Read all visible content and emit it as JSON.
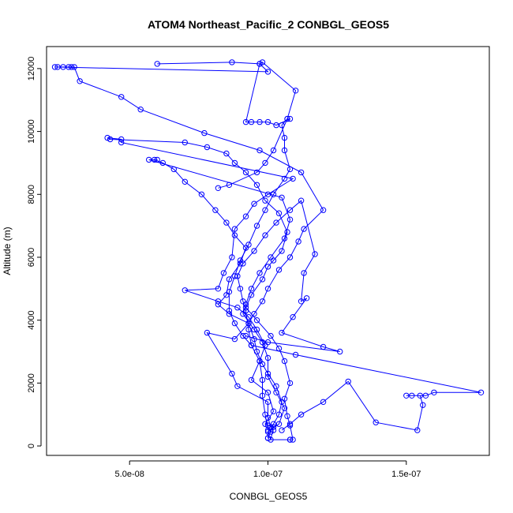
{
  "chart_data": {
    "type": "line",
    "title": "ATOM4 Northeast_Pacific_2 CONBGL_GEOS5",
    "xlabel": "CONBGL_GEOS5",
    "ylabel": "Altitude (m)",
    "xlim": [
      2e-08,
      1.8e-07
    ],
    "ylim": [
      -300,
      12700
    ],
    "x_ticks": [
      {
        "value": 5e-08,
        "label": "5.0e-08"
      },
      {
        "value": 1e-07,
        "label": "1.0e-07"
      },
      {
        "value": 1.5e-07,
        "label": "1.5e-07"
      }
    ],
    "y_ticks": [
      {
        "value": 0,
        "label": "0"
      },
      {
        "value": 2000,
        "label": "2000"
      },
      {
        "value": 4000,
        "label": "4000"
      },
      {
        "value": 6000,
        "label": "6000"
      },
      {
        "value": 8000,
        "label": "8000"
      },
      {
        "value": 10000,
        "label": "10000"
      },
      {
        "value": 12000,
        "label": "12000"
      }
    ],
    "grid": false,
    "colors": {
      "series": "#0000ff"
    },
    "series": [
      {
        "points": [
          [
            1.08e-07,
            200
          ],
          [
            1.09e-07,
            200
          ],
          [
            1.08e-07,
            650
          ],
          [
            1.07e-07,
            950
          ],
          [
            1.06e-07,
            1500
          ],
          [
            1.08e-07,
            2000
          ],
          [
            1.06e-07,
            2700
          ],
          [
            1.04e-07,
            3100
          ],
          [
            1.01e-07,
            3500
          ],
          [
            9.6e-08,
            4000
          ],
          [
            9.2e-08,
            4400
          ],
          [
            9.4e-08,
            4800
          ],
          [
            9.8e-08,
            5300
          ],
          [
            1e-07,
            5700
          ],
          [
            1.02e-07,
            5900
          ],
          [
            1.05e-07,
            6200
          ],
          [
            1.07e-07,
            6800
          ],
          [
            1.04e-07,
            7400
          ],
          [
            9.9e-08,
            7800
          ],
          [
            9.6e-08,
            8300
          ],
          [
            9.2e-08,
            8700
          ],
          [
            8.8e-08,
            9000
          ],
          [
            8.5e-08,
            9300
          ],
          [
            7.8e-08,
            9500
          ],
          [
            7e-08,
            9650
          ],
          [
            4.3e-08,
            9750
          ],
          [
            4.2e-08,
            9800
          ],
          [
            4.7e-08,
            9750
          ],
          [
            4.7e-08,
            9650
          ],
          [
            1.09e-07,
            8500
          ],
          [
            1e-07,
            8000
          ],
          [
            9.5e-08,
            7700
          ],
          [
            9.2e-08,
            7300
          ],
          [
            8.8e-08,
            6900
          ],
          [
            8.7e-08,
            6000
          ],
          [
            8.4e-08,
            5500
          ],
          [
            8.2e-08,
            5000
          ],
          [
            7e-08,
            4950
          ],
          [
            8.2e-08,
            4600
          ],
          [
            8.9e-08,
            4400
          ],
          [
            9.3e-08,
            4100
          ],
          [
            9.6e-08,
            3700
          ],
          [
            9.9e-08,
            3200
          ],
          [
            9.7e-08,
            2700
          ],
          [
            9.4e-08,
            2100
          ],
          [
            1e-07,
            1700
          ],
          [
            1.02e-07,
            1100
          ],
          [
            9.9e-08,
            700
          ],
          [
            1e-07,
            650
          ],
          [
            1.02e-07,
            600
          ],
          [
            1.01e-07,
            200
          ],
          [
            1.08e-07,
            200
          ]
        ]
      },
      {
        "points": [
          [
            1e-07,
            250
          ],
          [
            1.01e-07,
            450
          ],
          [
            1.02e-07,
            700
          ],
          [
            1.04e-07,
            1000
          ],
          [
            1.05e-07,
            1400
          ],
          [
            1.03e-07,
            1900
          ],
          [
            1e-07,
            2300
          ],
          [
            9.8e-08,
            2600
          ],
          [
            9.6e-08,
            3000
          ],
          [
            9.5e-08,
            3400
          ],
          [
            9.3e-08,
            3900
          ],
          [
            8.6e-08,
            4200
          ],
          [
            8.2e-08,
            4500
          ],
          [
            8.5e-08,
            4800
          ],
          [
            8.6e-08,
            5300
          ],
          [
            9e-08,
            5800
          ],
          [
            9.2e-08,
            6300
          ],
          [
            8.8e-08,
            6700
          ],
          [
            8.5e-08,
            7100
          ],
          [
            8.1e-08,
            7500
          ],
          [
            7.6e-08,
            8000
          ],
          [
            7e-08,
            8400
          ],
          [
            6.6e-08,
            8800
          ],
          [
            6.2e-08,
            9000
          ],
          [
            5.9e-08,
            9100
          ],
          [
            6e-08,
            9100
          ],
          [
            5.7e-08,
            9100
          ],
          [
            1.05e-07,
            7900
          ],
          [
            1.08e-07,
            7200
          ],
          [
            1.06e-07,
            6600
          ],
          [
            1.01e-07,
            6000
          ],
          [
            9.7e-08,
            5500
          ],
          [
            9.4e-08,
            5000
          ],
          [
            9.2e-08,
            4500
          ],
          [
            9.1e-08,
            4200
          ],
          [
            9.5e-08,
            3700
          ],
          [
            9.8e-08,
            3300
          ],
          [
            1e-07,
            2800
          ],
          [
            1e-07,
            2200
          ],
          [
            1.03e-07,
            1700
          ],
          [
            1.06e-07,
            1200
          ],
          [
            1.04e-07,
            700
          ],
          [
            1e-07,
            450
          ],
          [
            1e-07,
            250
          ]
        ]
      },
      {
        "points": [
          [
            1.05e-07,
            500
          ],
          [
            1.08e-07,
            700
          ],
          [
            1.12e-07,
            1000
          ],
          [
            1.2e-07,
            1400
          ],
          [
            1.29e-07,
            2050
          ],
          [
            1.39e-07,
            750
          ],
          [
            1.54e-07,
            500
          ],
          [
            1.56e-07,
            1300
          ],
          [
            1.55e-07,
            1600
          ],
          [
            1.52e-07,
            1600
          ],
          [
            1.5e-07,
            1600
          ],
          [
            1.57e-07,
            1600
          ],
          [
            1.6e-07,
            1700
          ],
          [
            1.77e-07,
            1700
          ],
          [
            1.1e-07,
            2900
          ],
          [
            9.4e-08,
            3200
          ],
          [
            9.1e-08,
            3500
          ],
          [
            8.8e-08,
            3900
          ],
          [
            8.6e-08,
            4300
          ],
          [
            8.6e-08,
            4900
          ],
          [
            8.8e-08,
            5400
          ],
          [
            9e-08,
            5900
          ],
          [
            9.3e-08,
            6400
          ],
          [
            9.6e-08,
            7000
          ],
          [
            9.9e-08,
            7500
          ],
          [
            1.02e-07,
            8000
          ],
          [
            1.06e-07,
            8500
          ],
          [
            1.08e-07,
            8800
          ],
          [
            1.06e-07,
            9400
          ],
          [
            1.06e-07,
            9800
          ],
          [
            1.05e-07,
            10200
          ],
          [
            1.07e-07,
            10400
          ],
          [
            1.08e-07,
            10400
          ],
          [
            1.03e-07,
            10200
          ],
          [
            1e-07,
            10300
          ],
          [
            9.7e-08,
            10300
          ],
          [
            9.4e-08,
            10300
          ],
          [
            9.2e-08,
            10300
          ],
          [
            9.7e-08,
            12150
          ],
          [
            9.8e-08,
            12200
          ],
          [
            1.1e-07,
            11300
          ],
          [
            1.07e-07,
            10400
          ],
          [
            1.02e-07,
            9400
          ],
          [
            9.9e-08,
            9000
          ],
          [
            9.6e-08,
            8700
          ],
          [
            8.6e-08,
            8300
          ],
          [
            8.2e-08,
            8200
          ]
        ]
      },
      {
        "points": [
          [
            6e-08,
            12150
          ],
          [
            8.7e-08,
            12200
          ],
          [
            9.7e-08,
            12150
          ],
          [
            1e-07,
            11900
          ],
          [
            2.3e-08,
            12050
          ],
          [
            2.4e-08,
            12050
          ],
          [
            2.6e-08,
            12050
          ],
          [
            2.8e-08,
            12050
          ],
          [
            2.9e-08,
            12050
          ],
          [
            3e-08,
            12050
          ],
          [
            3.2e-08,
            11600
          ],
          [
            4.7e-08,
            11100
          ],
          [
            5.4e-08,
            10700
          ],
          [
            7.7e-08,
            9950
          ],
          [
            9.7e-08,
            9400
          ],
          [
            1.12e-07,
            8700
          ],
          [
            1.2e-07,
            7500
          ],
          [
            1.13e-07,
            6900
          ],
          [
            1.11e-07,
            6500
          ],
          [
            1.08e-07,
            6000
          ],
          [
            1.04e-07,
            5600
          ],
          [
            1e-07,
            5000
          ],
          [
            9.8e-08,
            4600
          ],
          [
            9.5e-08,
            4200
          ],
          [
            9.3e-08,
            3900
          ],
          [
            8.8e-08,
            3400
          ],
          [
            7.8e-08,
            3600
          ],
          [
            8.7e-08,
            2300
          ],
          [
            8.9e-08,
            1900
          ],
          [
            1e-07,
            1400
          ],
          [
            1e-07,
            900
          ],
          [
            1.01e-07,
            600
          ],
          [
            1.02e-07,
            500
          ]
        ]
      },
      {
        "points": [
          [
            1e-07,
            500
          ],
          [
            9.9e-08,
            1000
          ],
          [
            9.8e-08,
            1600
          ],
          [
            9.8e-08,
            2100
          ],
          [
            9.7e-08,
            2700
          ],
          [
            9.4e-08,
            3200
          ],
          [
            9.3e-08,
            3700
          ],
          [
            9.2e-08,
            4300
          ],
          [
            9.1e-08,
            4600
          ],
          [
            9e-08,
            5000
          ],
          [
            8.9e-08,
            5400
          ],
          [
            9.1e-08,
            5800
          ],
          [
            9.5e-08,
            6200
          ],
          [
            9.9e-08,
            6700
          ],
          [
            1.03e-07,
            7100
          ],
          [
            1.08e-07,
            7500
          ],
          [
            1.12e-07,
            7800
          ],
          [
            1.17e-07,
            6100
          ],
          [
            1.13e-07,
            5500
          ],
          [
            1.12e-07,
            4600
          ],
          [
            1.14e-07,
            4700
          ],
          [
            1.09e-07,
            4100
          ],
          [
            1.05e-07,
            3600
          ],
          [
            1.2e-07,
            3150
          ],
          [
            1.26e-07,
            3000
          ],
          [
            1e-07,
            3300
          ],
          [
            9.2e-08,
            3500
          ]
        ]
      }
    ]
  }
}
